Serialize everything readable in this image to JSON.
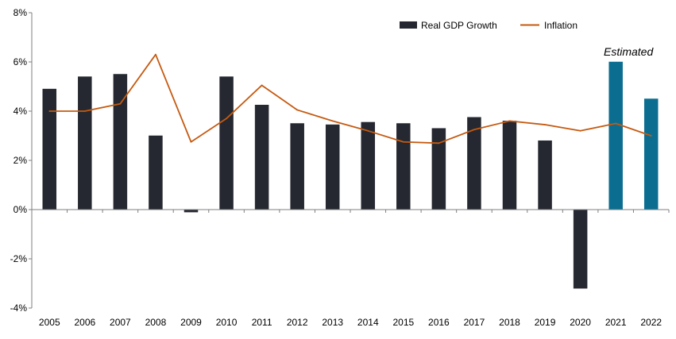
{
  "chart_data": {
    "type": "bar",
    "categories": [
      "2005",
      "2006",
      "2007",
      "2008",
      "2009",
      "2010",
      "2011",
      "2012",
      "2013",
      "2014",
      "2015",
      "2016",
      "2017",
      "2018",
      "2019",
      "2020",
      "2021",
      "2022"
    ],
    "series": [
      {
        "name": "Real GDP Growth",
        "type": "bar",
        "values": [
          4.9,
          5.4,
          5.5,
          3.0,
          -0.1,
          5.4,
          4.25,
          3.5,
          3.45,
          3.55,
          3.5,
          3.3,
          3.75,
          3.6,
          2.8,
          -3.2,
          6.0,
          4.5
        ],
        "estimated_from_index": 16
      },
      {
        "name": "Inflation",
        "type": "line",
        "values": [
          4.0,
          4.0,
          4.3,
          6.3,
          2.75,
          3.7,
          5.05,
          4.05,
          3.6,
          3.2,
          2.75,
          2.7,
          3.25,
          3.6,
          3.45,
          3.2,
          3.5,
          3.0
        ]
      }
    ],
    "ylim": [
      -4,
      8
    ],
    "yticks": [
      -4,
      -2,
      0,
      2,
      4,
      6,
      8
    ],
    "ytick_labels": [
      "-4%",
      "-2%",
      "0%",
      "2%",
      "4%",
      "6%",
      "8%"
    ],
    "annotation": "Estimated",
    "legend_position": "top-right",
    "grid": false,
    "colors": {
      "bar": "#252830",
      "bar_estimated": "#0b6e91",
      "line": "#c55a11",
      "axis": "#7f7f7f"
    }
  }
}
